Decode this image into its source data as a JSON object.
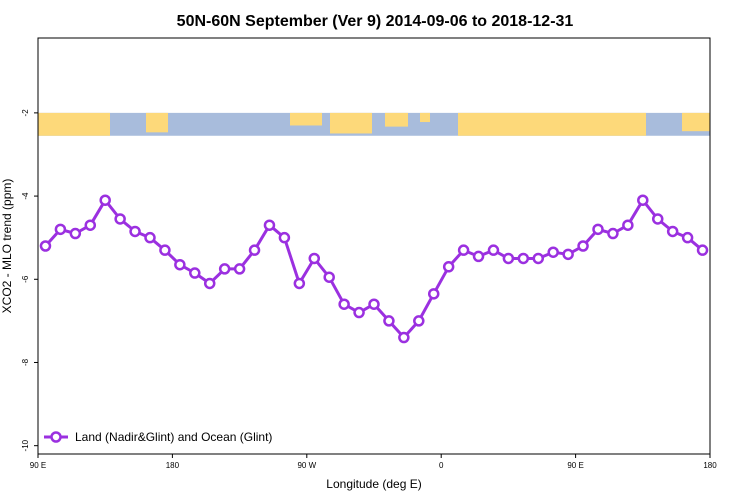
{
  "chart_data": {
    "type": "line",
    "title": "50N-60N September (Ver 9)   2014-09-06 to 2018-12-31",
    "xlabel": "Longitude (deg E)",
    "ylabel": "XCO2 - MLO trend (ppm)",
    "xlim": [
      90,
      540
    ],
    "ylim": [
      -10.2,
      -0.2
    ],
    "x_ticks": [
      {
        "value": 90,
        "label": "90 E"
      },
      {
        "value": 180,
        "label": "180"
      },
      {
        "value": 270,
        "label": "90 W"
      },
      {
        "value": 360,
        "label": "0"
      },
      {
        "value": 450,
        "label": "90 E"
      },
      {
        "value": 540,
        "label": "180"
      }
    ],
    "y_ticks": [
      {
        "value": -2,
        "label": "-2"
      },
      {
        "value": -4,
        "label": "-4"
      },
      {
        "value": -6,
        "label": "-6"
      },
      {
        "value": -8,
        "label": "-8"
      },
      {
        "value": -10,
        "label": "-10"
      }
    ],
    "map_strip": {
      "y_top": -2.0,
      "y_bottom": -2.55,
      "ocean_color": "#a8bcdc",
      "land_color": "#fdd97a"
    },
    "legend": {
      "position": "bottom-left"
    },
    "series": [
      {
        "name": "Land (Nadir&Glint) and Ocean (Glint)",
        "color": "#9b30e0",
        "x": [
          95,
          105,
          115,
          125,
          135,
          145,
          155,
          165,
          175,
          185,
          195,
          205,
          215,
          225,
          235,
          245,
          255,
          265,
          275,
          285,
          295,
          305,
          315,
          325,
          335,
          345,
          355,
          365,
          375,
          385,
          395,
          405,
          415,
          425,
          435,
          445,
          455,
          465,
          475,
          485,
          495,
          505,
          515,
          525,
          535
        ],
        "y": [
          -5.2,
          -4.8,
          -4.9,
          -4.7,
          -4.1,
          -4.55,
          -4.85,
          -5.0,
          -5.3,
          -5.65,
          -5.85,
          -6.1,
          -5.75,
          -5.75,
          -5.3,
          -4.7,
          -5.0,
          -6.1,
          -5.5,
          -5.95,
          -6.6,
          -6.8,
          -6.6,
          -7.0,
          -7.4,
          -7.0,
          -6.35,
          -5.7,
          -5.3,
          -5.45,
          -5.3,
          -5.5,
          -5.5,
          -5.5,
          -5.35,
          -5.4,
          -5.2,
          -4.8,
          -4.9,
          -4.7,
          -4.1,
          -4.55,
          -4.85,
          -5.0,
          -5.3
        ]
      }
    ]
  }
}
